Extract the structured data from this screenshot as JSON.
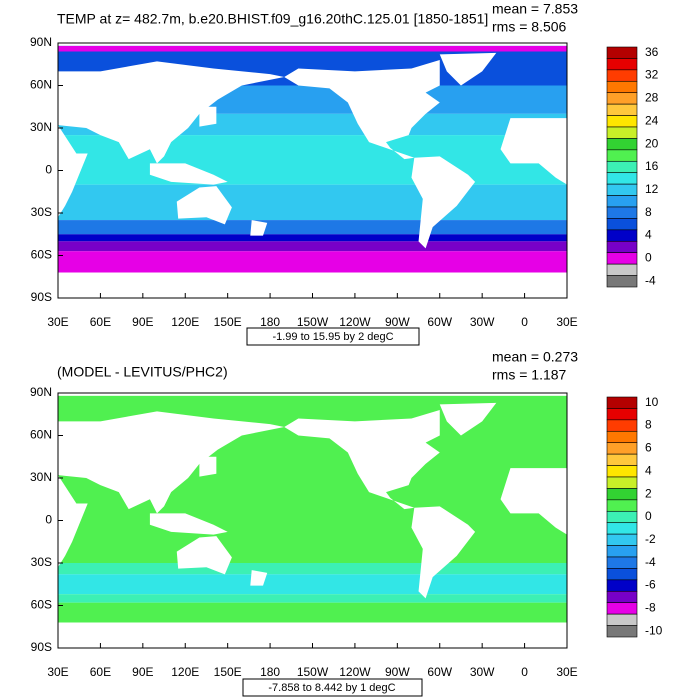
{
  "panels": [
    {
      "title": "TEMP at z= 482.7m, b.e20.BHIST.f09_g16.20thC.125.01 [1850-1851]",
      "stats": [
        "mean = 7.853",
        "rms = 8.506"
      ],
      "lat_ticks": [
        "90N",
        "60N",
        "30N",
        "0",
        "30S",
        "60S",
        "90S"
      ],
      "lon_ticks": [
        "30E",
        "60E",
        "90E",
        "120E",
        "150E",
        "180",
        "150W",
        "120W",
        "90W",
        "60W",
        "30W",
        "0",
        "30E"
      ],
      "colorbar_labels": [
        36,
        32,
        28,
        24,
        20,
        16,
        12,
        8,
        4,
        0,
        -4
      ],
      "colorbar_colors": [
        "#b40000",
        "#e60000",
        "#ff3c00",
        "#ff7800",
        "#ffa028",
        "#ffc83c",
        "#ffe600",
        "#c8f028",
        "#32d232",
        "#50f050",
        "#3cf0b4",
        "#32e6e6",
        "#32c8f0",
        "#28a0f0",
        "#1e78e6",
        "#0a50dc",
        "#0000c8",
        "#7800c8",
        "#e600e6",
        "#c8c8c8",
        "#787878"
      ],
      "contour_info": "-1.99 to 15.95 by 2 degC"
    },
    {
      "title": "(MODEL - LEVITUS/PHC2)",
      "stats": [
        "mean = 0.273",
        "rms = 1.187"
      ],
      "lat_ticks": [
        "90N",
        "60N",
        "30N",
        "0",
        "30S",
        "60S",
        "90S"
      ],
      "lon_ticks": [
        "30E",
        "60E",
        "90E",
        "120E",
        "150E",
        "180",
        "150W",
        "120W",
        "90W",
        "60W",
        "30W",
        "0",
        "30E"
      ],
      "colorbar_labels": [
        10,
        8,
        6,
        4,
        2,
        0,
        -2,
        -4,
        -6,
        -8,
        -10
      ],
      "colorbar_colors": [
        "#b40000",
        "#e60000",
        "#ff3c00",
        "#ff7800",
        "#ffa028",
        "#ffc83c",
        "#ffe600",
        "#c8f028",
        "#32d232",
        "#50f050",
        "#3cf0b4",
        "#32e6e6",
        "#32c8f0",
        "#28a0f0",
        "#1e78e6",
        "#0a50dc",
        "#0000c8",
        "#7800c8",
        "#e600e6",
        "#c8c8c8",
        "#787878"
      ],
      "contour_info": "-7.858 to 8.442 by 1 degC"
    }
  ]
}
